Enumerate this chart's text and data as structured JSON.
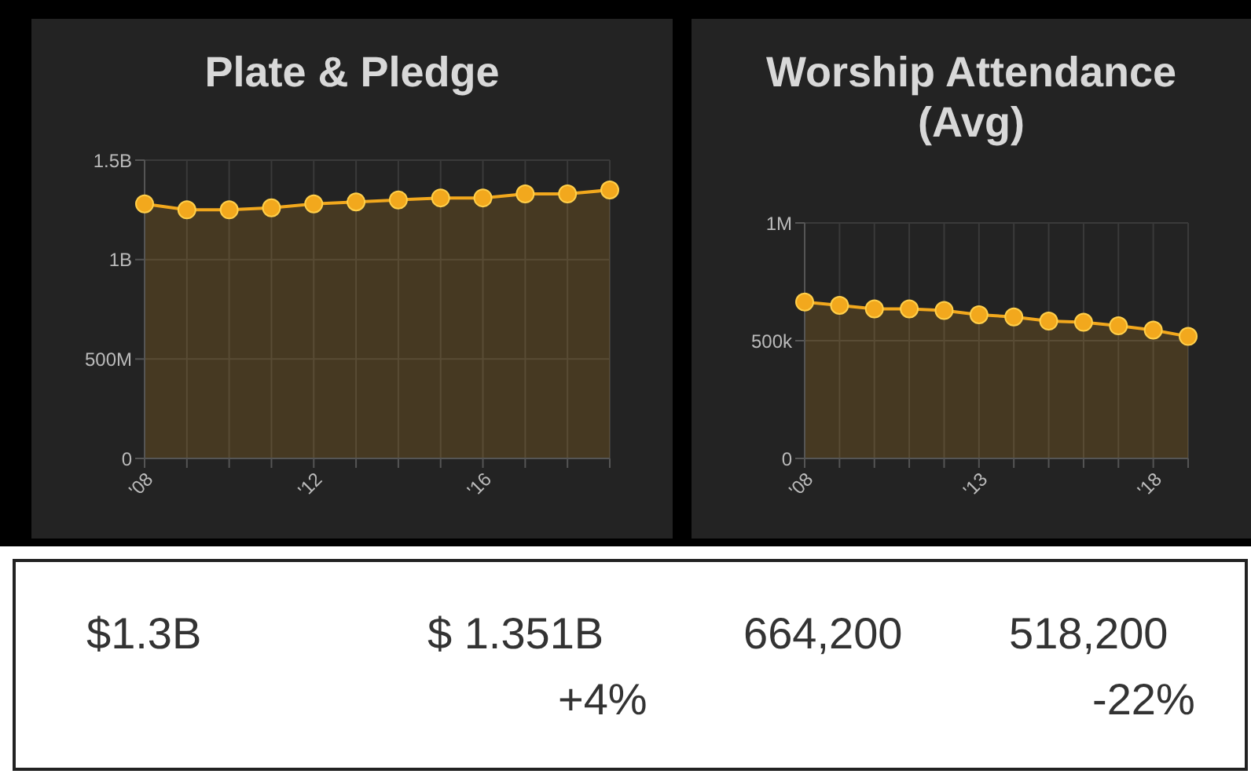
{
  "chart_data": [
    {
      "type": "area",
      "title": "Plate & Pledge",
      "categories": [
        "'08",
        null,
        null,
        null,
        "'12",
        null,
        null,
        null,
        "'16",
        null,
        null,
        null
      ],
      "series": [
        {
          "color": "#f2a81d",
          "values": [
            1280000000,
            1250000000,
            1250000000,
            1260000000,
            1280000000,
            1290000000,
            1300000000,
            1310000000,
            1310000000,
            1330000000,
            1330000000,
            1350000000
          ]
        }
      ],
      "ylim": [
        0,
        1500000000
      ],
      "yticks": [
        {
          "value": 0,
          "label": "0"
        },
        {
          "value": 500000000,
          "label": "500M"
        },
        {
          "value": 1000000000,
          "label": "1B"
        },
        {
          "value": 1500000000,
          "label": "1.5B"
        }
      ],
      "grid": true,
      "marker": "circle"
    },
    {
      "type": "area",
      "title": "Worship Attendance (Avg)",
      "categories": [
        "'08",
        null,
        null,
        null,
        null,
        "'13",
        null,
        null,
        null,
        null,
        "'18",
        null
      ],
      "series": [
        {
          "color": "#f2a81d",
          "values": [
            664000,
            650000,
            635000,
            635000,
            628000,
            610000,
            601000,
            583000,
            578000,
            563000,
            545000,
            518000
          ]
        }
      ],
      "ylim": [
        0,
        1000000
      ],
      "yticks": [
        {
          "value": 0,
          "label": "0"
        },
        {
          "value": 500000,
          "label": "500k"
        },
        {
          "value": 1000000,
          "label": "1M"
        }
      ],
      "grid": true,
      "marker": "circle"
    },
    {
      "type": "other",
      "annotations": [
        "$1.3B",
        "$ 1.351B",
        "664,200",
        "518,200",
        "+4%",
        "-22%"
      ]
    }
  ]
}
